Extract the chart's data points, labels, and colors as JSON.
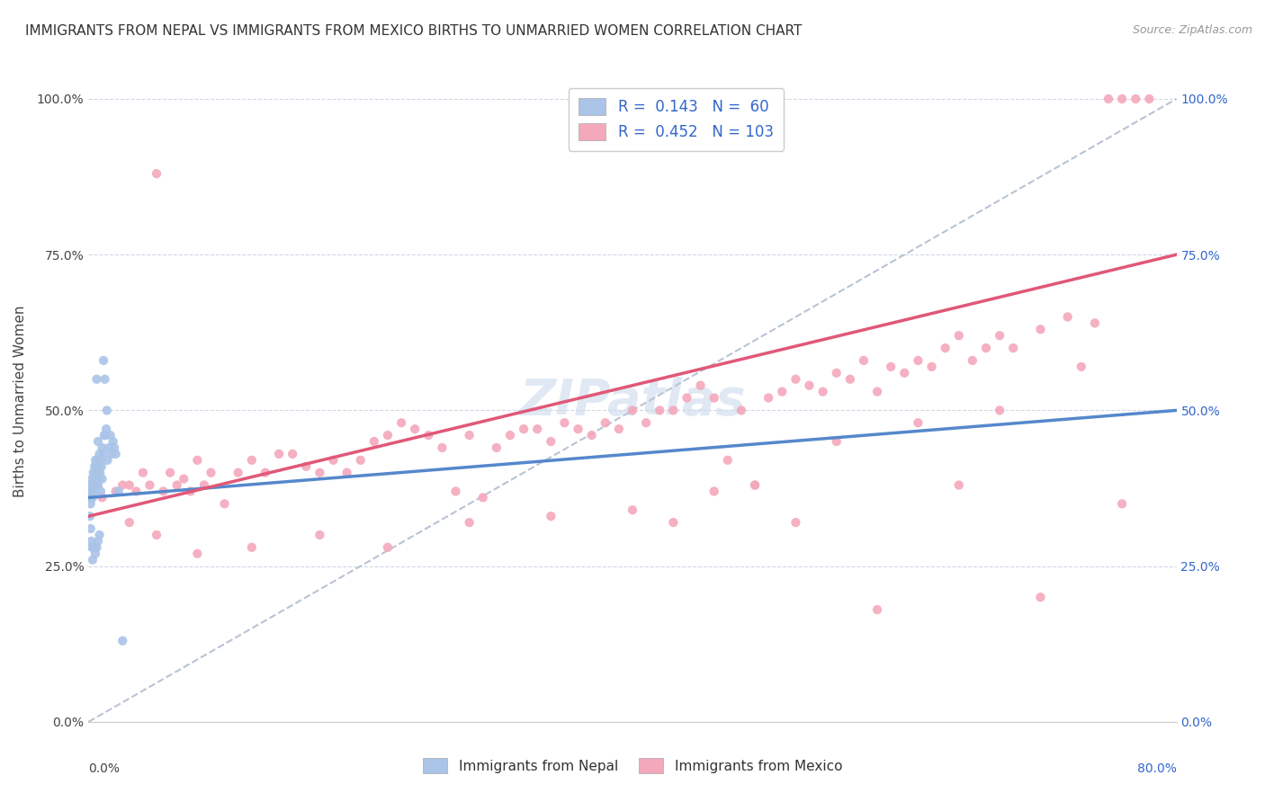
{
  "title": "IMMIGRANTS FROM NEPAL VS IMMIGRANTS FROM MEXICO BIRTHS TO UNMARRIED WOMEN CORRELATION CHART",
  "source": "Source: ZipAtlas.com",
  "ylabel": "Births to Unmarried Women",
  "ytick_values": [
    0.0,
    25.0,
    50.0,
    75.0,
    100.0
  ],
  "xmin": 0.0,
  "xmax": 80.0,
  "ymin": 0.0,
  "ymax": 103.0,
  "color_nepal": "#aac4e8",
  "color_mexico": "#f4a8bc",
  "trendline_nepal_color": "#5588cc",
  "trendline_mexico_color": "#e05878",
  "trendline_ref_color": "#b8c4d4",
  "background_color": "#ffffff",
  "nepal_x": [
    0.1,
    0.15,
    0.2,
    0.2,
    0.25,
    0.25,
    0.3,
    0.3,
    0.35,
    0.35,
    0.4,
    0.4,
    0.45,
    0.45,
    0.5,
    0.5,
    0.5,
    0.55,
    0.55,
    0.6,
    0.6,
    0.65,
    0.65,
    0.7,
    0.7,
    0.75,
    0.8,
    0.8,
    0.85,
    0.9,
    0.9,
    0.95,
    1.0,
    1.0,
    1.05,
    1.1,
    1.15,
    1.2,
    1.25,
    1.3,
    1.35,
    1.4,
    1.5,
    1.6,
    1.7,
    1.8,
    1.9,
    2.0,
    2.2,
    2.5,
    0.1,
    0.15,
    0.2,
    0.25,
    0.3,
    0.4,
    0.5,
    0.6,
    0.7,
    0.8
  ],
  "nepal_y": [
    37.0,
    35.0,
    36.0,
    38.0,
    37.0,
    39.0,
    36.0,
    38.0,
    40.0,
    37.0,
    38.0,
    39.0,
    41.0,
    37.0,
    40.0,
    38.0,
    42.0,
    39.0,
    41.0,
    38.0,
    55.0,
    42.0,
    40.0,
    45.0,
    38.0,
    41.0,
    43.0,
    39.0,
    40.0,
    42.0,
    37.0,
    41.0,
    44.0,
    39.0,
    43.0,
    58.0,
    46.0,
    55.0,
    46.0,
    47.0,
    50.0,
    42.0,
    44.0,
    46.0,
    43.0,
    45.0,
    44.0,
    43.0,
    37.0,
    13.0,
    33.0,
    31.0,
    29.0,
    28.0,
    26.0,
    28.0,
    27.0,
    28.0,
    29.0,
    30.0
  ],
  "mexico_x": [
    1.0,
    2.0,
    2.5,
    3.0,
    3.5,
    4.0,
    4.5,
    5.0,
    5.5,
    6.0,
    6.5,
    7.0,
    7.5,
    8.0,
    8.5,
    9.0,
    10.0,
    11.0,
    12.0,
    13.0,
    14.0,
    15.0,
    16.0,
    17.0,
    18.0,
    19.0,
    20.0,
    21.0,
    22.0,
    23.0,
    24.0,
    25.0,
    26.0,
    27.0,
    28.0,
    29.0,
    30.0,
    31.0,
    32.0,
    33.0,
    34.0,
    35.0,
    36.0,
    37.0,
    38.0,
    39.0,
    40.0,
    41.0,
    42.0,
    43.0,
    44.0,
    45.0,
    46.0,
    47.0,
    48.0,
    49.0,
    50.0,
    51.0,
    52.0,
    53.0,
    54.0,
    55.0,
    56.0,
    57.0,
    58.0,
    59.0,
    60.0,
    61.0,
    62.0,
    63.0,
    64.0,
    65.0,
    66.0,
    67.0,
    68.0,
    70.0,
    72.0,
    73.0,
    74.0,
    75.0,
    76.0,
    77.0,
    78.0,
    3.0,
    5.0,
    8.0,
    12.0,
    17.0,
    22.0,
    28.0,
    34.0,
    40.0,
    46.0,
    52.0,
    58.0,
    64.0,
    70.0,
    76.0,
    43.0,
    49.0,
    55.0,
    61.0,
    67.0
  ],
  "mexico_y": [
    36.0,
    37.0,
    38.0,
    38.0,
    37.0,
    40.0,
    38.0,
    88.0,
    37.0,
    40.0,
    38.0,
    39.0,
    37.0,
    42.0,
    38.0,
    40.0,
    35.0,
    40.0,
    42.0,
    40.0,
    43.0,
    43.0,
    41.0,
    40.0,
    42.0,
    40.0,
    42.0,
    45.0,
    46.0,
    48.0,
    47.0,
    46.0,
    44.0,
    37.0,
    46.0,
    36.0,
    44.0,
    46.0,
    47.0,
    47.0,
    45.0,
    48.0,
    47.0,
    46.0,
    48.0,
    47.0,
    50.0,
    48.0,
    50.0,
    50.0,
    52.0,
    54.0,
    52.0,
    42.0,
    50.0,
    38.0,
    52.0,
    53.0,
    55.0,
    54.0,
    53.0,
    56.0,
    55.0,
    58.0,
    53.0,
    57.0,
    56.0,
    58.0,
    57.0,
    60.0,
    62.0,
    58.0,
    60.0,
    62.0,
    60.0,
    63.0,
    65.0,
    57.0,
    64.0,
    100.0,
    100.0,
    100.0,
    100.0,
    32.0,
    30.0,
    27.0,
    28.0,
    30.0,
    28.0,
    32.0,
    33.0,
    34.0,
    37.0,
    32.0,
    18.0,
    38.0,
    20.0,
    35.0,
    32.0,
    38.0,
    45.0,
    48.0,
    50.0
  ]
}
